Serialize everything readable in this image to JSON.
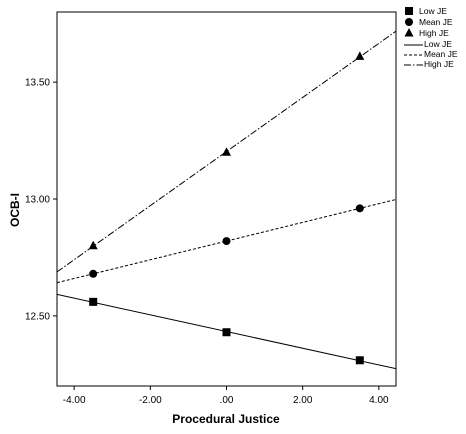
{
  "chart_data": {
    "type": "line",
    "title": "",
    "xlabel": "Procedural Justice",
    "ylabel": "OCB-I",
    "xlim": [
      -4.45,
      4.45
    ],
    "ylim": [
      12.2,
      13.8
    ],
    "x_ticks": [
      -4.0,
      -2.0,
      0.0,
      2.0,
      4.0
    ],
    "x_tick_labels": [
      "-4.00",
      "-2.00",
      ".00",
      "2.00",
      "4.00"
    ],
    "y_ticks": [
      12.5,
      13.0,
      13.5
    ],
    "y_tick_labels": [
      "12.50",
      "13.00",
      "13.50"
    ],
    "grid": false,
    "legend_position": "right",
    "series": [
      {
        "name": "Low JE",
        "marker": "square",
        "dash": "solid",
        "line_name": "Low JE",
        "points": [
          {
            "x": -3.5,
            "y": 12.56
          },
          {
            "x": 0.0,
            "y": 12.43
          },
          {
            "x": 3.5,
            "y": 12.31
          }
        ],
        "fit": {
          "intercept": 12.433,
          "slope": -0.0357
        }
      },
      {
        "name": "Mean JE",
        "marker": "circle",
        "dash": "dashed",
        "line_name": "Mean JE",
        "points": [
          {
            "x": -3.5,
            "y": 12.68
          },
          {
            "x": 0.0,
            "y": 12.82
          },
          {
            "x": 3.5,
            "y": 12.96
          }
        ],
        "fit": {
          "intercept": 12.82,
          "slope": 0.04
        }
      },
      {
        "name": "High JE",
        "marker": "triangle",
        "dash": "dashdot",
        "line_name": "High JE",
        "points": [
          {
            "x": -3.5,
            "y": 12.8
          },
          {
            "x": 0.0,
            "y": 13.2
          },
          {
            "x": 3.5,
            "y": 13.61
          }
        ],
        "fit": {
          "intercept": 13.203,
          "slope": 0.1157
        }
      }
    ]
  }
}
